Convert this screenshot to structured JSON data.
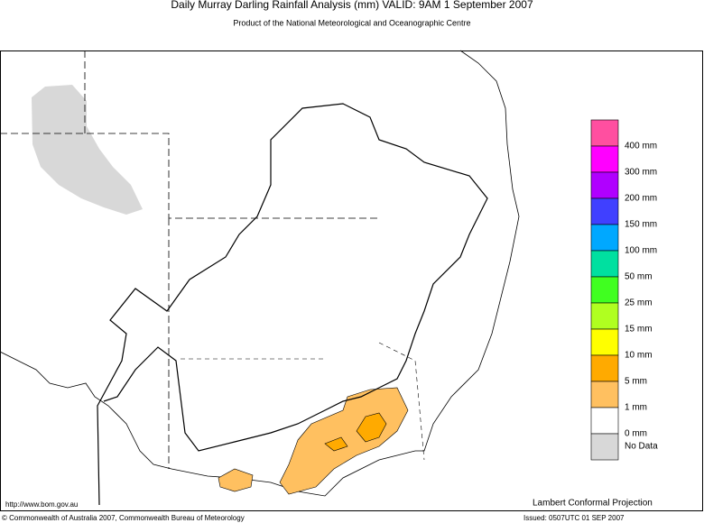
{
  "header": {
    "title": "Daily Murray Darling Rainfall Analysis (mm)  VALID: 9AM  1 September 2007",
    "subtitle": "Product of the National Meteorological and Oceanographic Centre"
  },
  "legend": {
    "colors": [
      "#ff4fa0",
      "#ff00ff",
      "#b000ff",
      "#4040ff",
      "#00a8ff",
      "#00e0a0",
      "#40ff20",
      "#b0ff20",
      "#ffff00",
      "#ffaa00",
      "#ffc060",
      "#ffffff",
      "#d8d8d8"
    ],
    "labels": [
      "400 mm",
      "300 mm",
      "200 mm",
      "150 mm",
      "100 mm",
      "50 mm",
      "25 mm",
      "15 mm",
      "10 mm",
      "5 mm",
      "1 mm",
      "0 mm",
      "No Data"
    ]
  },
  "footer": {
    "website": "http://www.bom.gov.au",
    "projection": "Lambert Conformal Projection",
    "copyright": "© Commonwealth of Australia 2007, Commonwealth Bureau of Meteorology",
    "issued": "Issued: 0507UTC 01 SEP 2007"
  }
}
